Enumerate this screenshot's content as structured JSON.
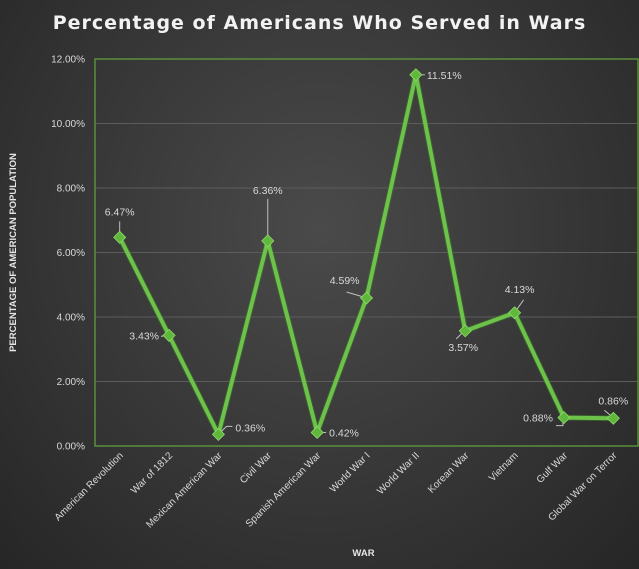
{
  "chart_data": {
    "type": "line",
    "title": "Percentage of Americans Who Served in Wars",
    "xlabel": "WAR",
    "ylabel": "PERCENTAGE OF AMERICAN POPULATION",
    "ylim": [
      0,
      12
    ],
    "yticks": [
      0,
      2,
      4,
      6,
      8,
      10,
      12
    ],
    "ytick_labels": [
      "0.00%",
      "2.00%",
      "4.00%",
      "6.00%",
      "8.00%",
      "10.00%",
      "12.00%"
    ],
    "grid": true,
    "legend": "none",
    "categories": [
      "American Revolution",
      "War of 1812",
      "Mexican American War",
      "Civil War",
      "Spanish American War",
      "World War I",
      "World War II",
      "Korean War",
      "Vietnam",
      "Gulf War",
      "Global War on Terror"
    ],
    "series": [
      {
        "name": "Percentage of American Population",
        "values": [
          6.47,
          3.43,
          0.36,
          6.36,
          0.42,
          4.59,
          11.51,
          3.57,
          4.13,
          0.88,
          0.86
        ],
        "labels": [
          "6.47%",
          "3.43%",
          "0.36%",
          "6.36%",
          "0.42%",
          "4.59%",
          "11.51%",
          "3.57%",
          "4.13%",
          "0.88%",
          "0.86%"
        ],
        "color": "#6cc24a"
      }
    ],
    "colors": {
      "line": "#6cc24a",
      "marker": "#5fb83c",
      "plot_border": "#5a8f3a",
      "grid": "#5c5c5c",
      "text": "#d9d9d9"
    }
  }
}
